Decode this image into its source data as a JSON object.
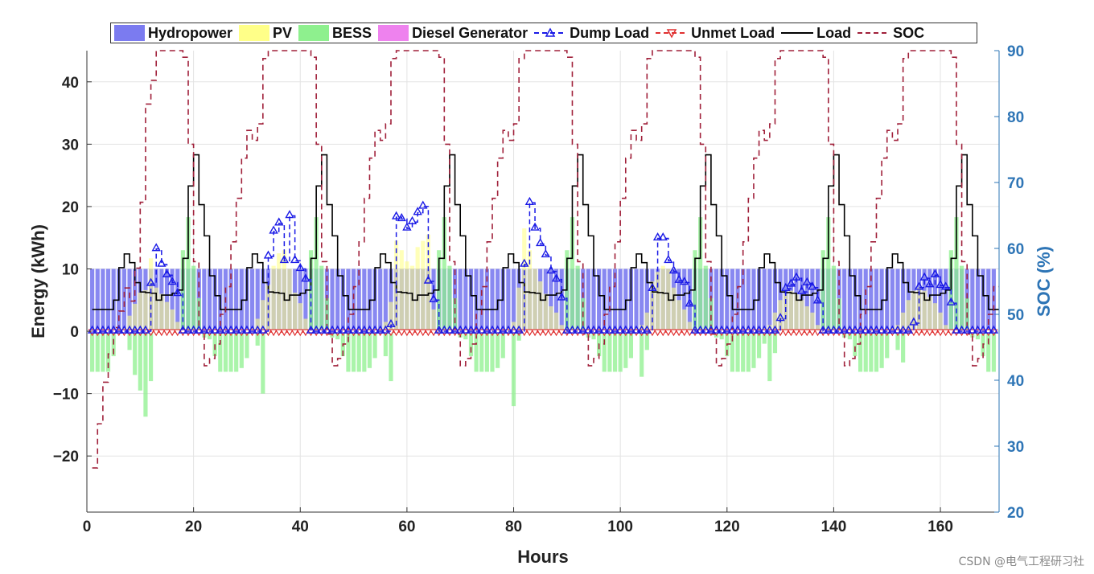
{
  "chart_data": {
    "type": "bar+line",
    "xlabel": "Hours",
    "ylabel_left": "Energy (kWh)",
    "ylabel_right": "SOC (%)",
    "xlim": [
      0,
      171
    ],
    "ylim_left": [
      -29,
      45
    ],
    "ylim_right": [
      20,
      90
    ],
    "x_ticks": [
      0,
      20,
      40,
      60,
      80,
      100,
      120,
      140,
      160
    ],
    "y_ticks_left": [
      -20,
      -10,
      0,
      10,
      20,
      30,
      40
    ],
    "y_ticks_right": [
      20,
      30,
      40,
      50,
      60,
      70,
      80,
      90
    ],
    "grid": true,
    "legend_placement": "top",
    "hours_first": 1,
    "hours_last": 170,
    "legend": [
      "Hydropower",
      "PV",
      "BESS",
      "Diesel Generator",
      "Dump Load",
      "Unmet Load",
      "Load",
      "SOC"
    ],
    "colors": {
      "hydropower": "#7b7bf0",
      "pv": "#ffff88",
      "bess": "#8ef08e",
      "diesel": "#ee82ee",
      "dump": "#1a1ae6",
      "unmet": "#e03030",
      "load": "#000000",
      "soc": "#a0203a",
      "right_axis": "#2e75b6"
    },
    "hydropower_kwh_every_hour": 10,
    "diesel_kwh_every_hour": 0,
    "unmet_load_kwh_every_hour": 0,
    "load_daily_profile_kwh": [
      3.5,
      3.5,
      3.5,
      3.5,
      5,
      10.2,
      12.4,
      11,
      7.8,
      6.3,
      6.2,
      6.1,
      5,
      5.8,
      5.8,
      6.1,
      6.6,
      11.7,
      23.3,
      28.3,
      20.3,
      15.3,
      8.9,
      5.7
    ],
    "pv_by_day": [
      [
        0,
        0,
        0,
        0,
        0,
        0,
        0.5,
        2.5,
        4.4,
        6.2,
        6.6,
        11.7,
        7,
        6,
        4.7,
        3.5,
        1.5,
        0,
        0,
        0,
        0,
        0,
        0,
        0
      ],
      [
        0,
        0,
        0,
        0,
        0,
        0,
        0.5,
        2,
        5,
        7.5,
        10.5,
        12.5,
        13,
        10,
        6.2,
        4.5,
        2,
        0,
        0,
        0,
        0,
        0,
        0,
        0
      ],
      [
        0,
        0,
        0,
        0,
        0,
        0,
        0.5,
        1.5,
        4.7,
        14.5,
        13,
        11.2,
        10.5,
        13.5,
        14.5,
        15.5,
        3.5,
        0,
        0,
        0,
        0,
        0,
        0,
        0
      ],
      [
        0,
        0,
        0,
        0,
        0,
        0,
        0.5,
        1.5,
        7,
        16.5,
        13,
        10,
        8,
        6,
        4,
        3,
        1,
        0,
        0,
        0,
        0,
        0,
        0,
        0
      ],
      [
        0,
        0,
        0,
        0,
        0,
        0,
        0.5,
        1,
        3,
        8,
        9.5,
        10.5,
        10,
        7,
        5,
        3.5,
        1.5,
        0,
        0,
        0,
        0,
        0,
        0,
        0
      ],
      [
        0,
        0,
        0,
        0,
        0,
        0,
        0.5,
        1,
        3,
        5,
        6,
        6.5,
        6,
        5,
        4,
        3,
        1,
        0,
        0,
        0,
        0,
        0,
        0,
        0
      ],
      [
        0,
        0,
        0,
        0,
        0,
        0,
        0.5,
        1,
        3,
        5,
        6.5,
        7,
        6.5,
        5.5,
        4.5,
        3,
        1,
        0,
        0,
        0,
        0,
        0,
        0,
        0
      ],
      [
        0,
        0
      ]
    ],
    "bess_by_day": [
      [
        -6.5,
        -6.5,
        -6.5,
        -6.5,
        -4,
        0,
        0,
        -3,
        -7,
        -9.5,
        -13.7,
        -8,
        0,
        0,
        0,
        0,
        0,
        13,
        18.3,
        10.5,
        5.3,
        -1,
        -1.3,
        -4
      ],
      [
        -6.5,
        -6.5,
        -6.5,
        -6.5,
        -5.9,
        -4.3,
        0,
        -2.3,
        -10,
        0,
        0,
        0,
        0,
        0,
        0,
        0,
        0,
        13,
        18.3,
        10.5,
        5.3,
        -1,
        -1.3,
        -4
      ],
      [
        -6.5,
        -6.5,
        -6.5,
        -6.5,
        -5.9,
        -4.3,
        0,
        -4,
        -8,
        0,
        0,
        0,
        0,
        0,
        0,
        0,
        0,
        13,
        18.3,
        10.5,
        5.3,
        -1,
        -1.3,
        -4
      ],
      [
        -6.5,
        -6.5,
        -6.5,
        -6.5,
        -5.9,
        -4.3,
        0,
        -12,
        -1.5,
        0,
        0,
        0,
        0,
        0,
        0,
        0,
        0,
        13,
        18.3,
        10.5,
        5.3,
        -1,
        -1.3,
        -4
      ],
      [
        -6.5,
        -6.5,
        -6.5,
        -6.5,
        -5.9,
        -4.3,
        0,
        -7.3,
        -3,
        0,
        0,
        0,
        0,
        0,
        0,
        0,
        0,
        13,
        18.3,
        10.5,
        5.3,
        -1,
        -1.3,
        -4
      ],
      [
        -6.5,
        -6.5,
        -6.5,
        -6.5,
        -5.9,
        -4.3,
        -2,
        -8,
        -3.5,
        0,
        0,
        0,
        0,
        0,
        0,
        0,
        0,
        13,
        18.3,
        10.5,
        5.3,
        -1,
        -1.3,
        -4
      ],
      [
        -6.5,
        -6.5,
        -6.5,
        -6.5,
        -5.9,
        -4.3,
        0,
        -3,
        -5,
        0,
        0,
        0,
        0,
        0,
        0,
        0,
        0,
        13,
        18.3,
        10.5,
        5.3,
        -1,
        -1.3,
        -4
      ],
      [
        -6.5,
        -6.5
      ]
    ],
    "dump_by_day": [
      [
        0,
        0,
        0,
        0,
        0,
        0,
        0,
        0,
        0,
        0,
        0,
        7.6,
        13.2,
        10.7,
        9,
        7.8,
        6,
        0,
        0,
        0,
        0,
        0,
        0,
        0
      ],
      [
        0,
        0,
        0,
        0,
        0,
        0,
        0,
        0,
        0,
        12,
        16,
        17.3,
        11.3,
        18.5,
        11.3,
        10,
        8.3,
        0,
        0,
        0,
        0,
        0,
        0,
        0
      ],
      [
        0,
        0,
        0,
        0,
        0,
        0,
        0,
        0,
        1,
        18.3,
        18,
        16.5,
        17.5,
        19,
        20,
        8,
        5,
        0,
        0,
        0,
        0,
        0,
        0,
        0
      ],
      [
        0,
        0,
        0,
        0,
        0,
        0,
        0,
        0,
        0,
        10.7,
        20.6,
        16.5,
        14,
        12.2,
        9.6,
        8.3,
        5.3,
        0,
        0,
        0,
        0,
        0,
        0,
        0
      ],
      [
        0,
        0,
        0,
        0,
        0,
        0,
        0,
        0,
        0,
        6.8,
        14.9,
        14.9,
        11.3,
        9.6,
        8.1,
        7.8,
        4.3,
        0,
        0,
        0,
        0,
        0,
        0,
        0
      ],
      [
        0,
        0,
        0,
        0,
        0,
        0,
        0,
        0,
        0,
        2,
        6.8,
        7.5,
        8.5,
        6.3,
        7.7,
        7,
        4.8,
        0,
        0,
        0,
        0,
        0,
        0,
        0
      ],
      [
        0,
        0,
        0,
        0,
        0,
        0,
        0,
        0,
        0,
        0,
        1.3,
        7,
        8.5,
        7.4,
        9,
        7.3,
        7,
        4.5,
        0,
        0,
        0,
        0,
        0,
        0
      ],
      [
        0,
        0
      ]
    ],
    "soc_by_day": [
      [
        26.7,
        33.4,
        39.7,
        44,
        48,
        50.5,
        54,
        52,
        57,
        67,
        81.9,
        85.5,
        90,
        90,
        90,
        90,
        90,
        89,
        75.8,
        58,
        47,
        42.2,
        43.3,
        45.5
      ],
      [
        50,
        54.2,
        61,
        67.6,
        73.7,
        77.9,
        76.4,
        78.9,
        88.8,
        90,
        90,
        90,
        90,
        90,
        90,
        90,
        90,
        89,
        75.8,
        58,
        47,
        42.2,
        43.3,
        45.5
      ],
      [
        50,
        54.2,
        61,
        67.6,
        73.7,
        77.9,
        76.4,
        78.9,
        88.8,
        90,
        90,
        90,
        90,
        90,
        90,
        90,
        90,
        89,
        75.8,
        58,
        47,
        42.2,
        43.3,
        45.5
      ],
      [
        50,
        54.2,
        61,
        67.6,
        73.7,
        77.9,
        76.4,
        78.9,
        88.8,
        90,
        90,
        90,
        90,
        90,
        90,
        90,
        90,
        89,
        75.8,
        58,
        47,
        42.2,
        43.3,
        45.5
      ],
      [
        50,
        54.2,
        61,
        67.6,
        73.7,
        77.9,
        76.4,
        78.9,
        88.8,
        90,
        90,
        90,
        90,
        90,
        90,
        90,
        90,
        89,
        75.8,
        58,
        47,
        42.2,
        43.3,
        45.5
      ],
      [
        50,
        54.2,
        61,
        67.6,
        73.7,
        77.9,
        76.4,
        78.9,
        88.8,
        90,
        90,
        90,
        90,
        90,
        90,
        90,
        90,
        89,
        75.8,
        58,
        47,
        42.2,
        43.3,
        45.5
      ],
      [
        50,
        54.2,
        61,
        67.6,
        73.7,
        77.9,
        76.4,
        78.9,
        88.8,
        90,
        90,
        90,
        90,
        90,
        90,
        90,
        90,
        89,
        75.8,
        58,
        47,
        42.2,
        43.3,
        45.5
      ],
      [
        50,
        54.2
      ]
    ]
  },
  "watermark": "CSDN @电气工程研习社"
}
